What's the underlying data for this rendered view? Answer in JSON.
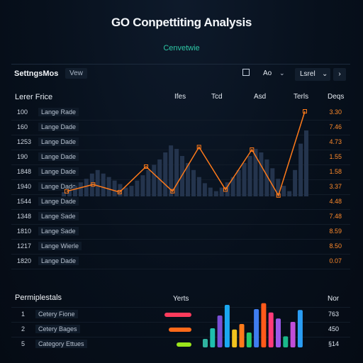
{
  "header": {
    "title": "GO Conpettiting Analysis",
    "subtitle": "Cenvetwie"
  },
  "toolbar": {
    "label": "SettngsMos",
    "view": "Vew",
    "zoom": "Ao",
    "level": "Lsrel",
    "next": "›",
    "chev": "⌄"
  },
  "table": {
    "col_main": "Lerer Frice",
    "cols": [
      "Ifes",
      "Tcd",
      "Asd",
      "Terls",
      "Deqs"
    ],
    "rows": [
      {
        "num": "100",
        "name": "Lange Rade",
        "value": "3.30"
      },
      {
        "num": "160",
        "name": "Lange Dade",
        "value": "7.46"
      },
      {
        "num": "1253",
        "name": "Lange Dade",
        "value": "4.73"
      },
      {
        "num": "190",
        "name": "Lange Dade",
        "value": "1.55"
      },
      {
        "num": "1848",
        "name": "Lange Dade",
        "value": "1.58"
      },
      {
        "num": "1940",
        "name": "Lange Dade",
        "value": "3.37"
      },
      {
        "num": "1544",
        "name": "Lange Dade",
        "value": "4.48"
      },
      {
        "num": "1348",
        "name": "Lange Sade",
        "value": "7.48"
      },
      {
        "num": "1810",
        "name": "Lange Sade",
        "value": "8.59"
      },
      {
        "num": "1217",
        "name": "Lange Wierle",
        "value": "8.50"
      },
      {
        "num": "1820",
        "name": "Lange Dade",
        "value": "0.07"
      }
    ]
  },
  "line_chart": {
    "line_color": "#ff7a1a",
    "bar_color": "#24344d",
    "line_values": [
      0.06,
      0.14,
      0.05,
      0.35,
      0.06,
      0.58,
      0.08,
      0.55,
      0.01,
      1.0
    ],
    "bar_values": [
      0.05,
      0.08,
      0.12,
      0.16,
      0.2,
      0.26,
      0.3,
      0.26,
      0.22,
      0.18,
      0.14,
      0.1,
      0.12,
      0.18,
      0.24,
      0.3,
      0.36,
      0.42,
      0.5,
      0.58,
      0.54,
      0.46,
      0.38,
      0.3,
      0.22,
      0.15,
      0.1,
      0.06,
      0.1,
      0.16,
      0.22,
      0.3,
      0.38,
      0.46,
      0.54,
      0.5,
      0.42,
      0.32,
      0.2,
      0.12,
      0.06,
      0.3,
      0.6,
      0.75
    ]
  },
  "panel2": {
    "title": "Permiplestals",
    "col1": "Yerts",
    "col2": "Nor",
    "rows": [
      {
        "num": "1",
        "name": "Cetery Fione",
        "value": "763",
        "bar_color": "#ff3b5c",
        "bar_fraction": 0.9
      },
      {
        "num": "2",
        "name": "Cetery Bages",
        "value": "450",
        "bar_color": "#ff6a1a",
        "bar_fraction": 0.75
      },
      {
        "num": "5",
        "name": "Category Ettues",
        "value": "§14",
        "bar_color": "#9be51c",
        "bar_fraction": 0.5
      }
    ],
    "bars": [
      {
        "value": 0.2,
        "color": "#2fb3a0"
      },
      {
        "value": 0.45,
        "color": "#1fbfae"
      },
      {
        "value": 0.75,
        "color": "#7a4fd6"
      },
      {
        "value": 1.0,
        "color": "#1aa8f2"
      },
      {
        "value": 0.42,
        "color": "#f2c21e"
      },
      {
        "value": 0.55,
        "color": "#ff7a1a"
      },
      {
        "value": 0.35,
        "color": "#26c96b"
      },
      {
        "value": 0.9,
        "color": "#3f7df0"
      },
      {
        "value": 1.04,
        "color": "#ff5a1a"
      },
      {
        "value": 0.82,
        "color": "#ff3b7a"
      },
      {
        "value": 0.68,
        "color": "#9b59e8"
      },
      {
        "value": 0.26,
        "color": "#1ab88a"
      },
      {
        "value": 0.6,
        "color": "#c04ed8"
      },
      {
        "value": 0.88,
        "color": "#2a9df4"
      }
    ]
  }
}
